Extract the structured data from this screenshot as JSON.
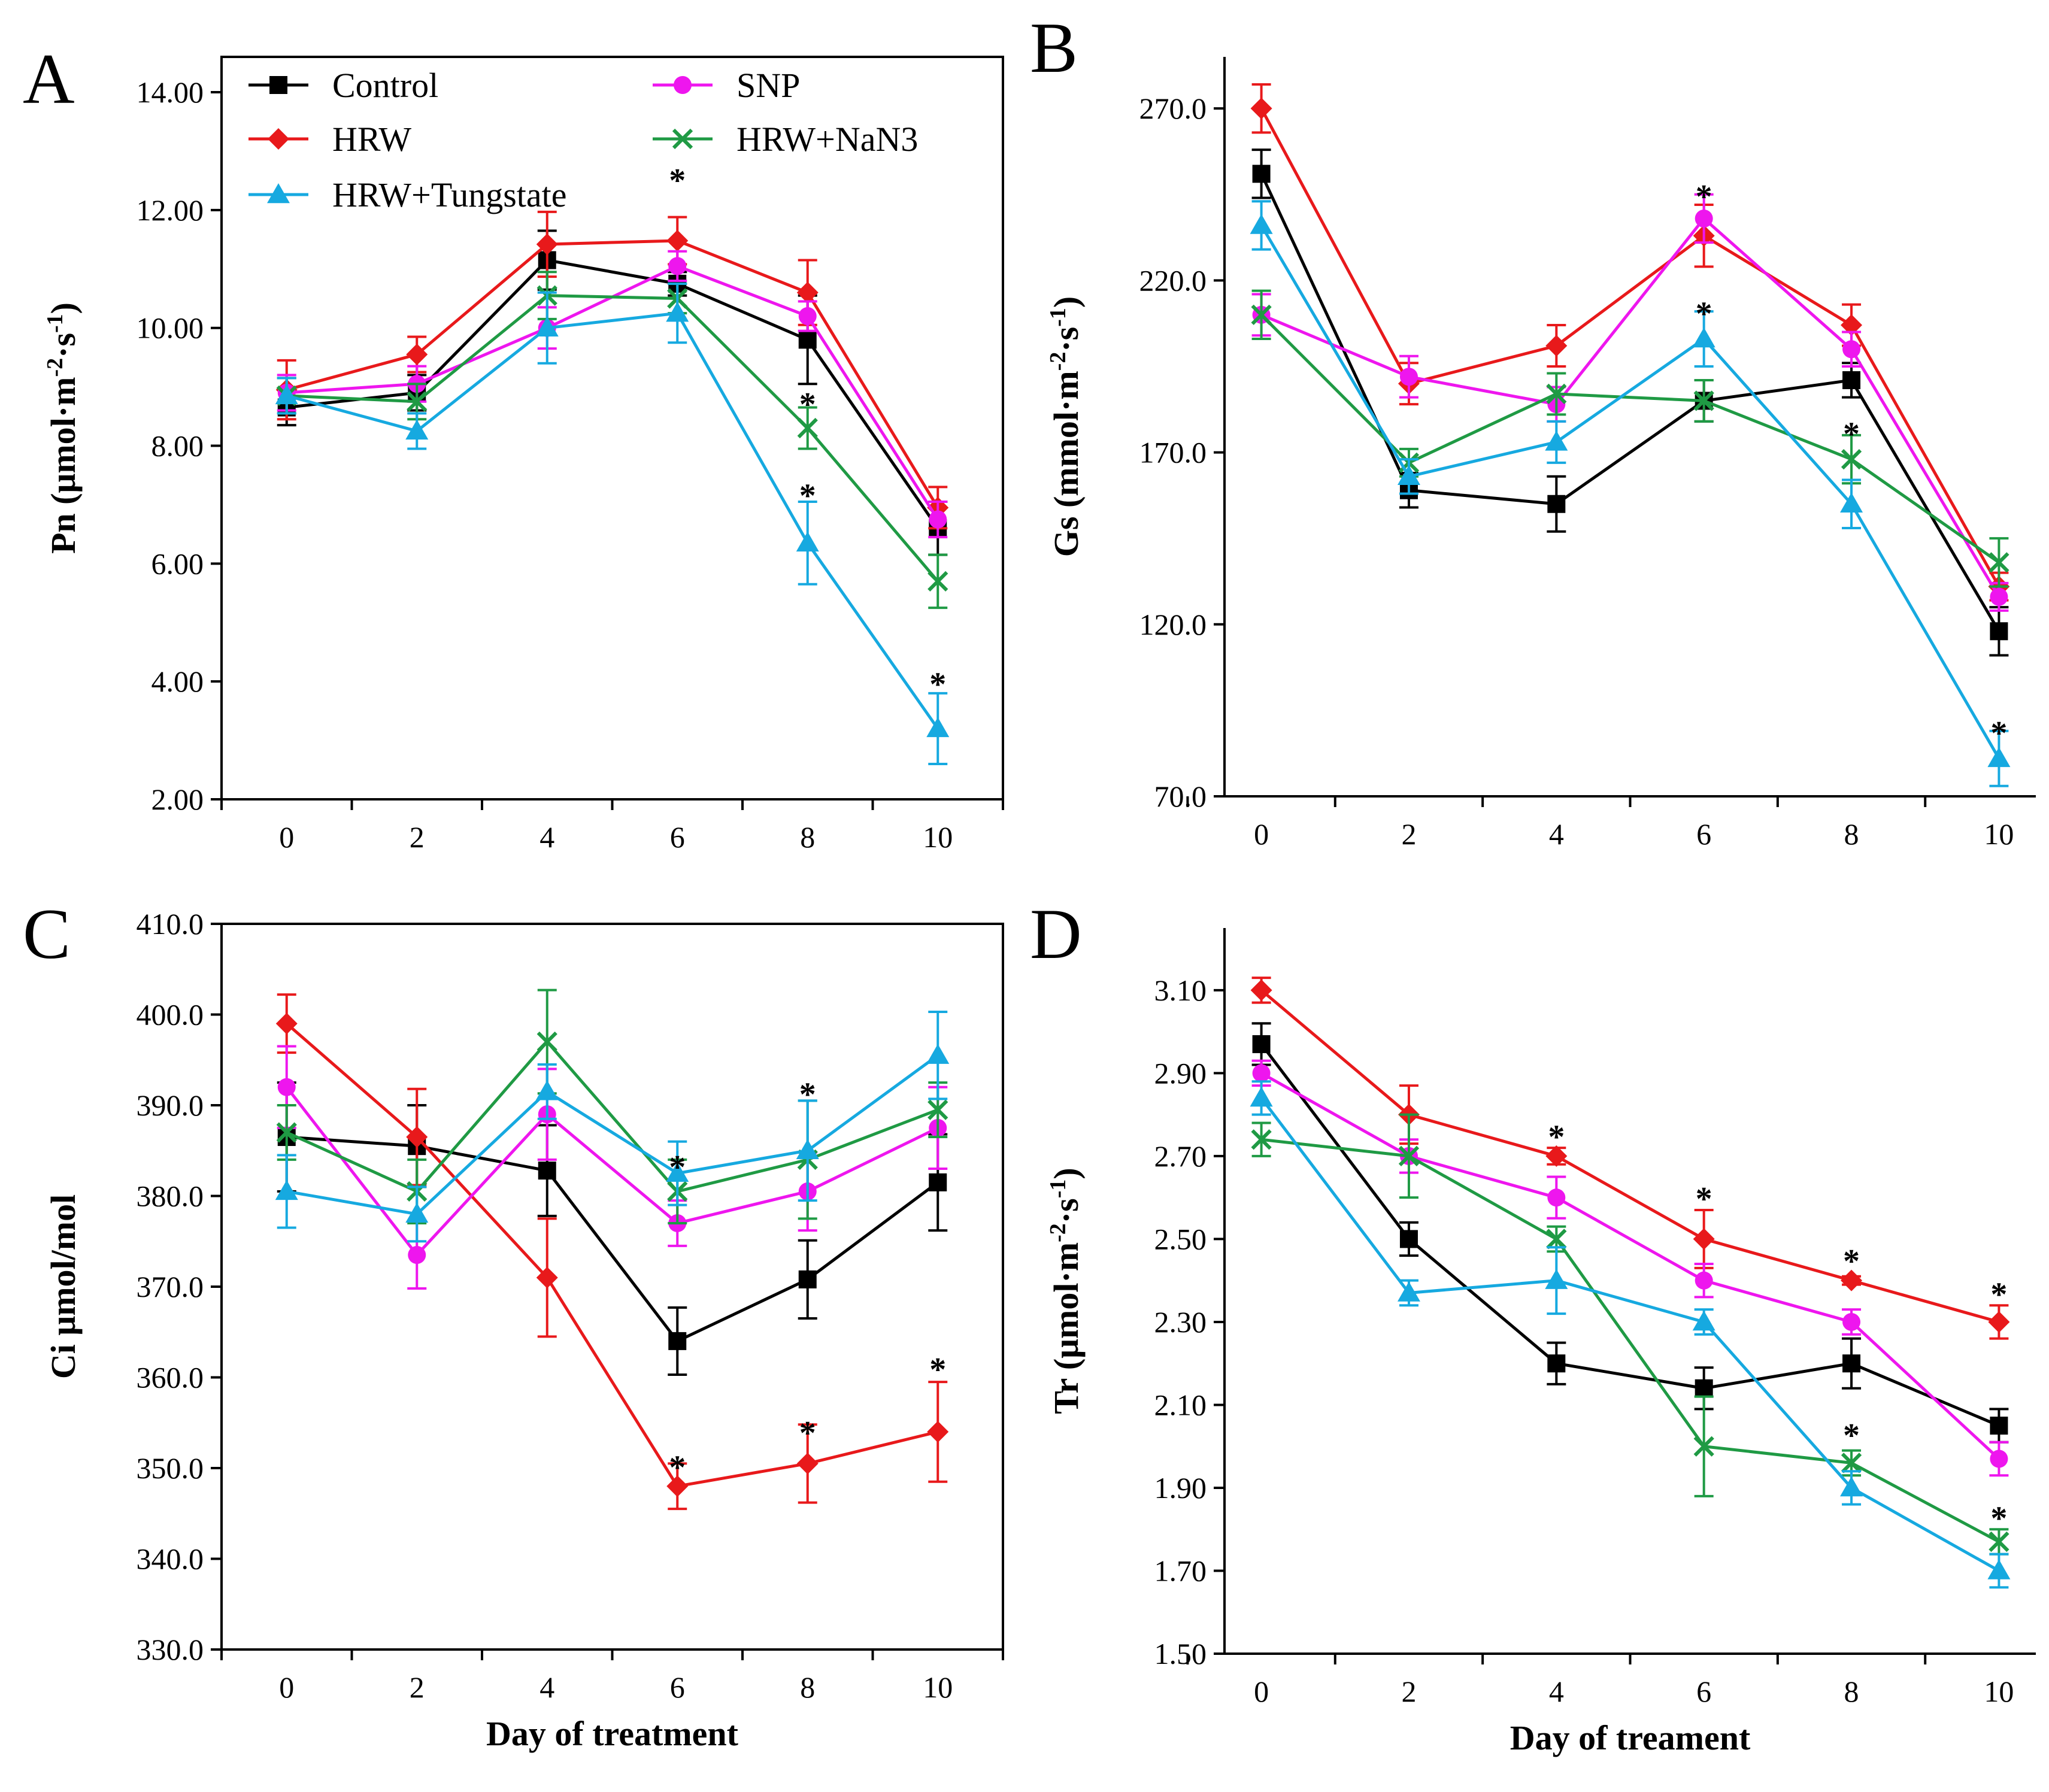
{
  "figure": {
    "palette": {
      "Control": "#000000",
      "HRW": "#e8191b",
      "SNP": "#ee16ee",
      "HRW+NaN3": "#1f9a44",
      "HRW+Tungstate": "#16a9e0"
    },
    "markers": {
      "Control": "square",
      "HRW": "diamond",
      "SNP": "circle",
      "HRW+NaN3": "cross",
      "HRW+Tungstate": "triangle"
    }
  },
  "chart_data": [
    {
      "type": "line",
      "panel": "A",
      "ylabel": "Pn (μmol·m-2·s-1)",
      "ylabel_parts": [
        "Pn (μmol·m",
        "-2",
        "·s",
        "-1",
        ")"
      ],
      "xlabel": "",
      "x": [
        0,
        2,
        4,
        6,
        8,
        10
      ],
      "xlim": [
        -1,
        11
      ],
      "ylim": [
        2,
        15
      ],
      "yticks": [
        2,
        4,
        6,
        8,
        10,
        12,
        14
      ],
      "ytick_labels": [
        "2.00",
        "4.00",
        "6.00",
        "8.00",
        "10.00",
        "12.00",
        "14.00"
      ],
      "frame": true,
      "legend": {
        "position": "top-left",
        "entries": [
          "Control",
          "SNP",
          "HRW",
          "HRW+NaN3",
          "HRW+Tungstate"
        ]
      },
      "series": [
        {
          "name": "Control",
          "values": [
            8.65,
            8.9,
            11.15,
            10.75,
            9.8,
            6.6
          ],
          "errors": [
            0.3,
            0.3,
            0.5,
            0.2,
            0.75,
            0.45
          ]
        },
        {
          "name": "HRW",
          "values": [
            8.95,
            9.55,
            11.42,
            11.48,
            10.6,
            6.95
          ],
          "errors": [
            0.5,
            0.3,
            0.55,
            0.4,
            0.55,
            0.35
          ]
        },
        {
          "name": "SNP",
          "values": [
            8.9,
            9.05,
            10.0,
            11.05,
            10.2,
            6.75
          ],
          "errors": [
            0.3,
            0.3,
            0.35,
            0.25,
            0.25,
            0.3
          ]
        },
        {
          "name": "HRW+NaN3",
          "values": [
            8.85,
            8.75,
            10.55,
            10.5,
            8.3,
            5.7
          ],
          "errors": [
            0.3,
            0.3,
            0.4,
            0.25,
            0.35,
            0.45
          ]
        },
        {
          "name": "HRW+Tungstate",
          "values": [
            8.85,
            8.25,
            10.0,
            10.25,
            6.35,
            3.2
          ],
          "errors": [
            0.3,
            0.3,
            0.6,
            0.5,
            0.7,
            0.6
          ]
        }
      ],
      "annotations": [
        {
          "text": "*",
          "x": 6,
          "y": 12.6
        },
        {
          "text": "*",
          "x": 8,
          "y": 8.8
        },
        {
          "text": "*",
          "x": 8,
          "y": 7.25
        },
        {
          "text": "*",
          "x": 10,
          "y": 4.05
        }
      ]
    },
    {
      "type": "line",
      "panel": "B",
      "ylabel": "Gs (mmol·m-2·s-1)",
      "ylabel_parts": [
        "Gs (mmol·m",
        "-2",
        "·s",
        "-1",
        ")"
      ],
      "xlabel": "",
      "x": [
        0,
        2,
        4,
        6,
        8,
        10
      ],
      "xlim": [
        -0.5,
        10.5
      ],
      "ylim": [
        70,
        290
      ],
      "yticks": [
        70,
        120,
        170,
        220,
        270
      ],
      "ytick_labels": [
        "70.0",
        "120.0",
        "170.0",
        "220.0",
        "270.0"
      ],
      "frame": false,
      "series": [
        {
          "name": "Control",
          "values": [
            251,
            159,
            155,
            185,
            191,
            118
          ],
          "errors": [
            7,
            5,
            8,
            6,
            5,
            7
          ]
        },
        {
          "name": "HRW",
          "values": [
            270,
            190,
            201,
            233,
            207,
            131
          ],
          "errors": [
            7,
            6,
            6,
            9,
            6,
            4
          ]
        },
        {
          "name": "SNP",
          "values": [
            210,
            192,
            184,
            238,
            200,
            128
          ],
          "errors": [
            6,
            6,
            5,
            7,
            5,
            4
          ]
        },
        {
          "name": "HRW+NaN3",
          "values": [
            210,
            167,
            187,
            185,
            168,
            138
          ],
          "errors": [
            7,
            4,
            6,
            6,
            7,
            7
          ]
        },
        {
          "name": "HRW+Tungstate",
          "values": [
            236,
            163,
            173,
            203,
            155,
            81
          ],
          "errors": [
            7,
            5,
            6,
            8,
            7,
            8
          ]
        }
      ],
      "annotations": [
        {
          "text": "*",
          "x": 6,
          "y": 246
        },
        {
          "text": "*",
          "x": 6,
          "y": 212
        },
        {
          "text": "*",
          "x": 8,
          "y": 177
        },
        {
          "text": "*",
          "x": 10,
          "y": 90
        }
      ]
    },
    {
      "type": "line",
      "panel": "C",
      "ylabel": "Ci μmol/mol",
      "ylabel_parts": [
        "Ci μmol/mol"
      ],
      "xlabel": "Day of treatment",
      "x": [
        0,
        2,
        4,
        6,
        8,
        10
      ],
      "xlim": [
        -1,
        11
      ],
      "ylim": [
        330,
        410
      ],
      "yticks": [
        330,
        340,
        350,
        360,
        370,
        380,
        390,
        400,
        410
      ],
      "ytick_labels": [
        "330.0",
        "340.0",
        "350.0",
        "360.0",
        "370.0",
        "380.0",
        "390.0",
        "400.0",
        "410.0"
      ],
      "frame": true,
      "series": [
        {
          "name": "Control",
          "values": [
            386.5,
            385.5,
            382.8,
            364.0,
            370.8,
            381.5
          ],
          "errors": [
            6,
            4.5,
            5,
            3.7,
            4.3,
            5.3
          ]
        },
        {
          "name": "HRW",
          "values": [
            399.0,
            386.5,
            371.0,
            348.0,
            350.5,
            354.0
          ],
          "errors": [
            3.2,
            5.3,
            6.5,
            2.5,
            4.3,
            5.5
          ]
        },
        {
          "name": "SNP",
          "values": [
            392.0,
            373.5,
            389.0,
            377.0,
            380.5,
            387.5
          ],
          "errors": [
            4.5,
            3.7,
            5,
            2.5,
            4.3,
            4.5
          ]
        },
        {
          "name": "HRW+NaN3",
          "values": [
            387.0,
            380.5,
            397.0,
            380.5,
            384.0,
            389.5
          ],
          "errors": [
            3,
            3.5,
            5.7,
            3.5,
            6.5,
            3
          ]
        },
        {
          "name": "HRW+Tungstate",
          "values": [
            380.5,
            378.0,
            391.5,
            382.5,
            385.0,
            395.5
          ],
          "errors": [
            4,
            3,
            3,
            3.5,
            5.5,
            4.8
          ]
        }
      ],
      "annotations": [
        {
          "text": "*",
          "x": 6,
          "y": 383.8
        },
        {
          "text": "*",
          "x": 8,
          "y": 391.8
        },
        {
          "text": "*",
          "x": 6,
          "y": 350.7
        },
        {
          "text": "*",
          "x": 8,
          "y": 354.5
        },
        {
          "text": "*",
          "x": 10,
          "y": 361.5
        }
      ]
    },
    {
      "type": "line",
      "panel": "D",
      "ylabel": "Tr (μmol·m-2·s-1)",
      "ylabel_parts": [
        "Tr (μmol·m",
        "-2",
        "·s",
        "-1",
        ")"
      ],
      "xlabel": "Day of treament",
      "x": [
        0,
        2,
        4,
        6,
        8,
        10
      ],
      "xlim": [
        -0.5,
        10.5
      ],
      "ylim": [
        1.5,
        3.25
      ],
      "yticks": [
        1.5,
        1.7,
        1.9,
        2.1,
        2.3,
        2.5,
        2.7,
        2.9,
        3.1
      ],
      "ytick_labels": [
        "1.50",
        "1.70",
        "1.90",
        "2.10",
        "2.30",
        "2.50",
        "2.70",
        "2.90",
        "3.10"
      ],
      "frame": false,
      "series": [
        {
          "name": "Control",
          "values": [
            2.97,
            2.5,
            2.2,
            2.14,
            2.2,
            2.05
          ],
          "errors": [
            0.05,
            0.04,
            0.05,
            0.05,
            0.06,
            0.04
          ]
        },
        {
          "name": "HRW",
          "values": [
            3.1,
            2.8,
            2.7,
            2.5,
            2.4,
            2.3
          ],
          "errors": [
            0.03,
            0.07,
            0.02,
            0.07,
            0.01,
            0.04
          ]
        },
        {
          "name": "SNP",
          "values": [
            2.9,
            2.7,
            2.6,
            2.4,
            2.3,
            1.97
          ],
          "errors": [
            0.03,
            0.04,
            0.05,
            0.04,
            0.03,
            0.04
          ]
        },
        {
          "name": "HRW+NaN3",
          "values": [
            2.74,
            2.7,
            2.5,
            2.0,
            1.96,
            1.77
          ],
          "errors": [
            0.04,
            0.1,
            0.03,
            0.12,
            0.03,
            0.03
          ]
        },
        {
          "name": "HRW+Tungstate",
          "values": [
            2.84,
            2.37,
            2.4,
            2.3,
            1.9,
            1.7
          ],
          "errors": [
            0.04,
            0.03,
            0.08,
            0.03,
            0.04,
            0.04
          ]
        }
      ],
      "annotations": [
        {
          "text": "*",
          "x": 4,
          "y": 2.76
        },
        {
          "text": "*",
          "x": 6,
          "y": 2.61
        },
        {
          "text": "*",
          "x": 8,
          "y": 2.46
        },
        {
          "text": "*",
          "x": 10,
          "y": 2.38
        },
        {
          "text": "*",
          "x": 8,
          "y": 2.04
        },
        {
          "text": "*",
          "x": 10,
          "y": 1.84
        }
      ]
    }
  ]
}
